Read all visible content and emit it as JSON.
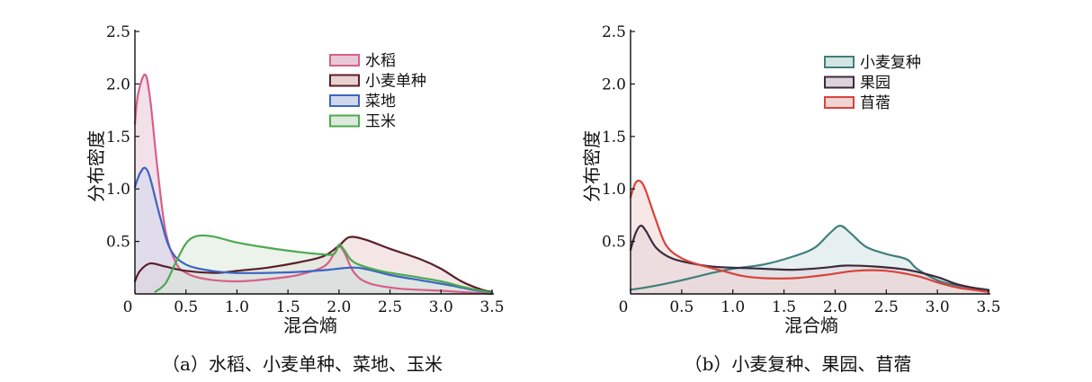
{
  "chart_data": [
    {
      "type": "area",
      "panel": "a",
      "caption": "（a）水稻、小麦单种、菜地、玉米",
      "xlabel": "混合熵",
      "ylabel": "分布密度",
      "xlim": [
        0,
        3.5
      ],
      "ylim": [
        0,
        2.5
      ],
      "x_ticks": [
        "0",
        "0.5",
        "1.0",
        "1.5",
        "2.0",
        "2.5",
        "3.0",
        "3.5"
      ],
      "y_ticks": [
        "0.5",
        "1.0",
        "1.5",
        "2.0",
        "2.5"
      ],
      "legend_position": "top-right",
      "series": [
        {
          "name": "水稻",
          "color": "#d85f8a",
          "fill": "#e7c9d5",
          "points": [
            [
              0,
              1.62
            ],
            [
              0.03,
              1.9
            ],
            [
              0.1,
              2.09
            ],
            [
              0.15,
              1.85
            ],
            [
              0.22,
              1.2
            ],
            [
              0.3,
              0.6
            ],
            [
              0.4,
              0.3
            ],
            [
              0.5,
              0.2
            ],
            [
              0.7,
              0.14
            ],
            [
              1.0,
              0.12
            ],
            [
              1.3,
              0.14
            ],
            [
              1.6,
              0.18
            ],
            [
              1.85,
              0.26
            ],
            [
              1.95,
              0.38
            ],
            [
              2.0,
              0.45
            ],
            [
              2.05,
              0.4
            ],
            [
              2.15,
              0.2
            ],
            [
              2.3,
              0.1
            ],
            [
              2.6,
              0.05
            ],
            [
              3.0,
              0.03
            ],
            [
              3.5,
              0.0
            ]
          ]
        },
        {
          "name": "小麦单种",
          "color": "#5a1f2b",
          "fill": "#e9d2d0",
          "points": [
            [
              0,
              0.12
            ],
            [
              0.05,
              0.22
            ],
            [
              0.15,
              0.29
            ],
            [
              0.3,
              0.26
            ],
            [
              0.5,
              0.22
            ],
            [
              0.8,
              0.2
            ],
            [
              1.0,
              0.22
            ],
            [
              1.3,
              0.25
            ],
            [
              1.6,
              0.3
            ],
            [
              1.85,
              0.36
            ],
            [
              2.0,
              0.46
            ],
            [
              2.1,
              0.54
            ],
            [
              2.25,
              0.52
            ],
            [
              2.5,
              0.43
            ],
            [
              2.8,
              0.33
            ],
            [
              3.0,
              0.24
            ],
            [
              3.2,
              0.12
            ],
            [
              3.4,
              0.04
            ],
            [
              3.5,
              0.02
            ]
          ]
        },
        {
          "name": "菜地",
          "color": "#3b65c1",
          "fill": "#d2d8ec",
          "points": [
            [
              0,
              1.02
            ],
            [
              0.05,
              1.15
            ],
            [
              0.1,
              1.2
            ],
            [
              0.15,
              1.1
            ],
            [
              0.25,
              0.72
            ],
            [
              0.35,
              0.42
            ],
            [
              0.5,
              0.28
            ],
            [
              0.75,
              0.22
            ],
            [
              1.0,
              0.2
            ],
            [
              1.3,
              0.2
            ],
            [
              1.6,
              0.21
            ],
            [
              1.9,
              0.23
            ],
            [
              2.1,
              0.25
            ],
            [
              2.25,
              0.24
            ],
            [
              2.5,
              0.18
            ],
            [
              2.8,
              0.13
            ],
            [
              3.1,
              0.08
            ],
            [
              3.3,
              0.04
            ],
            [
              3.5,
              0.01
            ]
          ]
        },
        {
          "name": "玉米",
          "color": "#4ea852",
          "fill": "#dbeadb",
          "points": [
            [
              0.2,
              0.02
            ],
            [
              0.3,
              0.1
            ],
            [
              0.4,
              0.3
            ],
            [
              0.5,
              0.48
            ],
            [
              0.6,
              0.55
            ],
            [
              0.75,
              0.55
            ],
            [
              1.0,
              0.49
            ],
            [
              1.3,
              0.44
            ],
            [
              1.6,
              0.4
            ],
            [
              1.8,
              0.38
            ],
            [
              1.95,
              0.38
            ],
            [
              2.0,
              0.47
            ],
            [
              2.05,
              0.42
            ],
            [
              2.15,
              0.3
            ],
            [
              2.4,
              0.22
            ],
            [
              2.7,
              0.17
            ],
            [
              3.0,
              0.12
            ],
            [
              3.2,
              0.07
            ],
            [
              3.4,
              0.03
            ],
            [
              3.5,
              0.01
            ]
          ]
        }
      ]
    },
    {
      "type": "area",
      "panel": "b",
      "caption": "（b）小麦复种、果园、苜蓿",
      "xlabel": "混合熵",
      "ylabel": "分布密度",
      "xlim": [
        0,
        3.5
      ],
      "ylim": [
        0,
        2.5
      ],
      "x_ticks": [
        "0",
        "0.5",
        "1.0",
        "1.5",
        "2.0",
        "2.5",
        "3.0",
        "3.5"
      ],
      "y_ticks": [
        "0.5",
        "1.0",
        "1.5",
        "2.0",
        "2.5"
      ],
      "legend_position": "top-right",
      "series": [
        {
          "name": "小麦复种",
          "color": "#3f7f7c",
          "fill": "#d3e4e3",
          "points": [
            [
              0,
              0.04
            ],
            [
              0.2,
              0.07
            ],
            [
              0.5,
              0.13
            ],
            [
              0.8,
              0.2
            ],
            [
              1.0,
              0.24
            ],
            [
              1.3,
              0.28
            ],
            [
              1.6,
              0.36
            ],
            [
              1.8,
              0.44
            ],
            [
              1.95,
              0.58
            ],
            [
              2.05,
              0.65
            ],
            [
              2.15,
              0.58
            ],
            [
              2.3,
              0.45
            ],
            [
              2.5,
              0.38
            ],
            [
              2.7,
              0.33
            ],
            [
              2.8,
              0.24
            ],
            [
              3.0,
              0.13
            ],
            [
              3.2,
              0.08
            ],
            [
              3.5,
              0.04
            ]
          ]
        },
        {
          "name": "果园",
          "color": "#3d2a3c",
          "fill": "#ddd3da",
          "points": [
            [
              0,
              0.42
            ],
            [
              0.05,
              0.58
            ],
            [
              0.1,
              0.65
            ],
            [
              0.15,
              0.6
            ],
            [
              0.25,
              0.44
            ],
            [
              0.4,
              0.34
            ],
            [
              0.6,
              0.29
            ],
            [
              0.8,
              0.26
            ],
            [
              1.0,
              0.25
            ],
            [
              1.3,
              0.24
            ],
            [
              1.6,
              0.23
            ],
            [
              1.9,
              0.25
            ],
            [
              2.1,
              0.27
            ],
            [
              2.4,
              0.26
            ],
            [
              2.7,
              0.23
            ],
            [
              3.0,
              0.16
            ],
            [
              3.2,
              0.09
            ],
            [
              3.5,
              0.03
            ]
          ]
        },
        {
          "name": "苜蓿",
          "color": "#d8433a",
          "fill": "#f0d5d3",
          "points": [
            [
              0,
              0.92
            ],
            [
              0.05,
              1.06
            ],
            [
              0.1,
              1.07
            ],
            [
              0.15,
              0.98
            ],
            [
              0.25,
              0.7
            ],
            [
              0.35,
              0.46
            ],
            [
              0.5,
              0.34
            ],
            [
              0.7,
              0.27
            ],
            [
              0.9,
              0.22
            ],
            [
              1.1,
              0.17
            ],
            [
              1.3,
              0.15
            ],
            [
              1.6,
              0.15
            ],
            [
              1.9,
              0.18
            ],
            [
              2.2,
              0.22
            ],
            [
              2.5,
              0.22
            ],
            [
              2.8,
              0.17
            ],
            [
              3.0,
              0.11
            ],
            [
              3.2,
              0.06
            ],
            [
              3.5,
              0.02
            ]
          ]
        }
      ]
    }
  ]
}
